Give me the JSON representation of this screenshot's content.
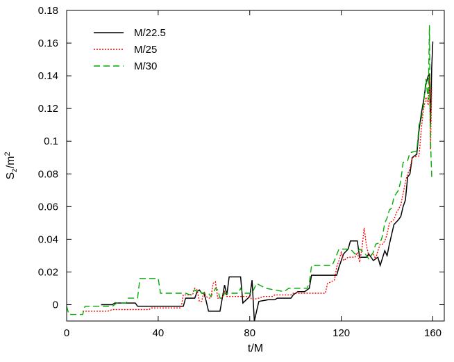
{
  "chart_data": {
    "type": "line",
    "xlabel": "t/M",
    "ylabel": {
      "main": "S",
      "sub": "z",
      "rest": "/m",
      "sup": "2"
    },
    "xlim": [
      0,
      165
    ],
    "ylim": [
      -0.01,
      0.18
    ],
    "xticks": [
      0,
      40,
      80,
      120,
      160
    ],
    "yticks": [
      0,
      0.02,
      0.04,
      0.06,
      0.08,
      0.1,
      0.12,
      0.14,
      0.16,
      0.18
    ],
    "legend_position": "top-left",
    "grid": false,
    "series": [
      {
        "name": "M/22.5",
        "color": "#000000",
        "style": "solid",
        "points": [
          [
            15,
            0
          ],
          [
            20,
            0
          ],
          [
            21,
            0.001
          ],
          [
            30,
            0.001
          ],
          [
            31,
            -0.001
          ],
          [
            51,
            -0.001
          ],
          [
            52,
            0.004
          ],
          [
            56,
            0.004
          ],
          [
            57,
            0.008
          ],
          [
            58,
            0.009
          ],
          [
            59,
            0.007
          ],
          [
            60,
            0.007
          ],
          [
            61,
            0.002
          ],
          [
            62,
            -0.004
          ],
          [
            67,
            -0.004
          ],
          [
            68,
            0.004
          ],
          [
            69,
            0.012
          ],
          [
            70,
            0.006
          ],
          [
            71,
            0.017
          ],
          [
            76,
            0.017
          ],
          [
            77,
            0.001
          ],
          [
            80,
            0.005
          ],
          [
            81,
            0.015
          ],
          [
            82,
            -0.01
          ],
          [
            83,
            -0.004
          ],
          [
            84,
            0.002
          ],
          [
            88,
            0.003
          ],
          [
            91,
            0.003
          ],
          [
            92,
            0.004
          ],
          [
            98,
            0.004
          ],
          [
            99,
            0.006
          ],
          [
            101,
            0.008
          ],
          [
            104,
            0.008
          ],
          [
            106,
            0.01
          ],
          [
            107,
            0.018
          ],
          [
            118,
            0.018
          ],
          [
            119,
            0.023
          ],
          [
            121,
            0.031
          ],
          [
            123,
            0.034
          ],
          [
            124,
            0.039
          ],
          [
            127,
            0.039
          ],
          [
            128,
            0.029
          ],
          [
            131,
            0.029
          ],
          [
            132,
            0.031
          ],
          [
            134,
            0.027
          ],
          [
            136,
            0.029
          ],
          [
            137,
            0.024
          ],
          [
            139,
            0.033
          ],
          [
            140,
            0.03
          ],
          [
            141,
            0.037
          ],
          [
            142,
            0.043
          ],
          [
            143,
            0.049
          ],
          [
            145,
            0.052
          ],
          [
            146,
            0.054
          ],
          [
            147,
            0.06
          ],
          [
            148,
            0.064
          ],
          [
            149,
            0.078
          ],
          [
            150,
            0.08
          ],
          [
            151,
            0.09
          ],
          [
            153,
            0.092
          ],
          [
            154,
            0.107
          ],
          [
            155,
            0.117
          ],
          [
            156,
            0.125
          ],
          [
            157,
            0.135
          ],
          [
            158,
            0.14
          ],
          [
            158.5,
            0.141
          ],
          [
            159,
            0.11
          ],
          [
            159.5,
            0.145
          ],
          [
            160,
            0.161
          ]
        ]
      },
      {
        "name": "M/25",
        "color": "#ff0000",
        "style": "dotted",
        "points": [
          [
            7,
            -0.004
          ],
          [
            18,
            -0.004
          ],
          [
            20,
            -0.003
          ],
          [
            36,
            -0.003
          ],
          [
            37,
            -0.002
          ],
          [
            50,
            -0.002
          ],
          [
            51,
            0.006
          ],
          [
            55,
            0.006
          ],
          [
            56,
            0.01
          ],
          [
            57,
            0.009
          ],
          [
            58,
            0.002
          ],
          [
            59,
            0.002
          ],
          [
            60,
            0.008
          ],
          [
            61,
            0.005
          ],
          [
            62,
            0.004
          ],
          [
            63,
            0.004
          ],
          [
            64,
            0.013
          ],
          [
            65,
            0.014
          ],
          [
            66,
            0.004
          ],
          [
            68,
            0.004
          ],
          [
            69,
            0.008
          ],
          [
            70,
            0.005
          ],
          [
            80,
            0.005
          ],
          [
            81,
            0.003
          ],
          [
            84,
            0.004
          ],
          [
            86,
            0.005
          ],
          [
            90,
            0.005
          ],
          [
            91,
            0.006
          ],
          [
            98,
            0.006
          ],
          [
            99,
            0.007
          ],
          [
            113,
            0.007
          ],
          [
            114,
            0.013
          ],
          [
            117,
            0.015
          ],
          [
            118,
            0.023
          ],
          [
            119,
            0.027
          ],
          [
            120,
            0.032
          ],
          [
            121,
            0.027
          ],
          [
            123,
            0.029
          ],
          [
            126,
            0.029
          ],
          [
            127,
            0.032
          ],
          [
            128,
            0.026
          ],
          [
            129,
            0.034
          ],
          [
            130,
            0.047
          ],
          [
            131,
            0.036
          ],
          [
            132,
            0.03
          ],
          [
            134,
            0.031
          ],
          [
            135,
            0.028
          ],
          [
            136,
            0.033
          ],
          [
            137,
            0.037
          ],
          [
            138,
            0.037
          ],
          [
            139,
            0.039
          ],
          [
            140,
            0.043
          ],
          [
            141,
            0.05
          ],
          [
            143,
            0.052
          ],
          [
            144,
            0.056
          ],
          [
            146,
            0.061
          ],
          [
            147,
            0.068
          ],
          [
            148,
            0.075
          ],
          [
            149,
            0.08
          ],
          [
            150,
            0.083
          ],
          [
            151,
            0.09
          ],
          [
            154,
            0.091
          ],
          [
            155,
            0.108
          ],
          [
            156,
            0.12
          ],
          [
            157,
            0.127
          ],
          [
            158,
            0.122
          ],
          [
            158.5,
            0.14
          ],
          [
            159,
            0.095
          ],
          [
            159.5,
            0.133
          ]
        ]
      },
      {
        "name": "M/30",
        "color": "#00aa00",
        "style": "dashed",
        "points": [
          [
            0,
            -0.001
          ],
          [
            1,
            -0.006
          ],
          [
            7,
            -0.006
          ],
          [
            8,
            -0.001
          ],
          [
            20,
            -0.001
          ],
          [
            22,
            0.001
          ],
          [
            26,
            0.001
          ],
          [
            27,
            0.004
          ],
          [
            31,
            0.004
          ],
          [
            32,
            0.016
          ],
          [
            40,
            0.016
          ],
          [
            41,
            0.007
          ],
          [
            52,
            0.007
          ],
          [
            54,
            0.006
          ],
          [
            55,
            0.008
          ],
          [
            56,
            0.009
          ],
          [
            57,
            0.008
          ],
          [
            58,
            0.009
          ],
          [
            59,
            0.007
          ],
          [
            62,
            0.007
          ],
          [
            63,
            0.005
          ],
          [
            64,
            0.007
          ],
          [
            65,
            0.01
          ],
          [
            66,
            0.009
          ],
          [
            67,
            0.004
          ],
          [
            68,
            0.004
          ],
          [
            69,
            0.007
          ],
          [
            75,
            0.007
          ],
          [
            76,
            0.01
          ],
          [
            77,
            0.007
          ],
          [
            81,
            0.007
          ],
          [
            83,
            0.013
          ],
          [
            87,
            0.01
          ],
          [
            95,
            0.008
          ],
          [
            97,
            0.01
          ],
          [
            105,
            0.01
          ],
          [
            106,
            0.013
          ],
          [
            107,
            0.024
          ],
          [
            116,
            0.024
          ],
          [
            117,
            0.027
          ],
          [
            119,
            0.034
          ],
          [
            124,
            0.034
          ],
          [
            126,
            0.031
          ],
          [
            128,
            0.034
          ],
          [
            130,
            0.032
          ],
          [
            132,
            0.028
          ],
          [
            134,
            0.032
          ],
          [
            135,
            0.037
          ],
          [
            137,
            0.038
          ],
          [
            138,
            0.042
          ],
          [
            139,
            0.05
          ],
          [
            140,
            0.053
          ],
          [
            141,
            0.058
          ],
          [
            142,
            0.059
          ],
          [
            143,
            0.066
          ],
          [
            145,
            0.07
          ],
          [
            146,
            0.076
          ],
          [
            147,
            0.087
          ],
          [
            149,
            0.088
          ],
          [
            150,
            0.093
          ],
          [
            153,
            0.094
          ],
          [
            154,
            0.11
          ],
          [
            155,
            0.114
          ],
          [
            156,
            0.123
          ],
          [
            157,
            0.138
          ],
          [
            158,
            0.125
          ],
          [
            158.5,
            0.171
          ],
          [
            159,
            0.1
          ],
          [
            159.5,
            0.078
          ]
        ]
      }
    ]
  }
}
